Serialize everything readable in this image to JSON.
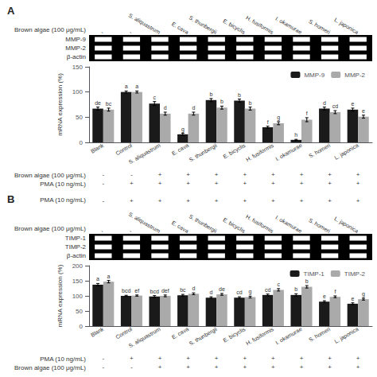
{
  "chart_data": [
    {
      "type": "bar",
      "title": "A",
      "ylabel": "mRNA expression (%)",
      "categories": [
        "Blank",
        "Control",
        "S. aliquastrum",
        "E. cava",
        "S. thunbergii",
        "E. bicyclis",
        "H. fusiformis",
        "I. okamurae",
        "S. homeri",
        "L. japonica"
      ],
      "series": [
        {
          "name": "MMP-9",
          "color": "#1a1a1a",
          "values": [
            67,
            100,
            77,
            16,
            84,
            83,
            30,
            5,
            67,
            65
          ],
          "errors": [
            3,
            2,
            4,
            2,
            3,
            3,
            2,
            1,
            3,
            3
          ],
          "letters": [
            "de",
            "a",
            "c",
            "g",
            "b",
            "b",
            "f",
            "h",
            "d",
            "e"
          ]
        },
        {
          "name": "MMP-2",
          "color": "#aaaaaa",
          "values": [
            65,
            100,
            57,
            57,
            69,
            67,
            38,
            45,
            60,
            51
          ],
          "errors": [
            3,
            2,
            3,
            3,
            3,
            3,
            3,
            4,
            3,
            3
          ],
          "letters": [
            "bc",
            "a",
            "d",
            "d",
            "b",
            "b",
            "g",
            "f",
            "cd",
            "e"
          ]
        }
      ],
      "ylim": [
        0,
        150
      ],
      "yticks": [
        0,
        50,
        100,
        150
      ],
      "grid": false,
      "legend": "upper right",
      "gel_labels": [
        "MMP-9",
        "MMP-2",
        "β-actin"
      ],
      "header_rows": [
        {
          "label": "Brown algae (100 μg/mL)",
          "values": [
            "-",
            "-",
            "S. aliquastrum",
            "E. cava",
            "S. thunbergii",
            "E. bicyclis",
            "H. fusiformis",
            "I. okamurae",
            "S. homeri",
            "L. japonica"
          ]
        }
      ],
      "rows": [
        {
          "label": "Brown algae (100 μg/mL)",
          "values": [
            "-",
            "-",
            "+",
            "+",
            "+",
            "+",
            "+",
            "+",
            "+",
            "+"
          ]
        },
        {
          "label": "PMA (10 ng/mL)",
          "values": [
            "-",
            "+",
            "+",
            "+",
            "+",
            "+",
            "+",
            "+",
            "+",
            "+"
          ]
        }
      ]
    },
    {
      "type": "bar",
      "title": "B",
      "ylabel": "mRNA expression (%)",
      "categories": [
        "Blank",
        "Control",
        "S. aliquastrum",
        "E. cava",
        "S. thunbergii",
        "E. bicyclis",
        "H. fusiformis",
        "I. okamurae",
        "S. homeri",
        "L. japonica"
      ],
      "series": [
        {
          "name": "TIMP-1",
          "color": "#1a1a1a",
          "values": [
            137,
            100,
            98,
            102,
            94,
            94,
            103,
            103,
            81,
            74
          ],
          "errors": [
            4,
            2,
            3,
            3,
            3,
            3,
            3,
            4,
            3,
            3
          ],
          "letters": [
            "a",
            "bcd",
            "bcd",
            "bc",
            "d",
            "cd",
            "cd",
            "b",
            "e",
            "e"
          ]
        },
        {
          "name": "TIMP-2",
          "color": "#aaaaaa",
          "values": [
            147,
            101,
            100,
            107,
            105,
            96,
            120,
            130,
            97,
            89
          ],
          "errors": [
            4,
            2,
            3,
            3,
            3,
            3,
            4,
            4,
            3,
            3
          ],
          "letters": [
            "a",
            "ef",
            "def",
            "d",
            "de",
            "g",
            "c",
            "b",
            "f",
            "g"
          ]
        }
      ],
      "ylim": [
        0,
        200
      ],
      "yticks": [
        0,
        50,
        100,
        150,
        200
      ],
      "grid": false,
      "legend": "upper right",
      "gel_labels": [
        "TIMP-1",
        "TIMP-2",
        "β-actin"
      ],
      "header_rows": [
        {
          "label": "PMA (10 ng/mL)",
          "values": [
            "-",
            "+",
            "+",
            "+",
            "+",
            "+",
            "+",
            "+",
            "+",
            "+"
          ]
        },
        {
          "label": "Brown algae (100 μg/mL)",
          "values": [
            "-",
            "-",
            "S. aliquastrum",
            "E. cava",
            "S. thunbergii",
            "E. bicyclis",
            "H. fusiformis",
            "I. okamurae",
            "S. homeri",
            "L. japonica"
          ]
        }
      ],
      "rows": [
        {
          "label": "PMA (10 ng/mL)",
          "values": [
            "-",
            "+",
            "+",
            "+",
            "+",
            "+",
            "+",
            "+",
            "+",
            "+"
          ]
        },
        {
          "label": "Brown algae (100 μg/mL)",
          "values": [
            "-",
            "-",
            "+",
            "+",
            "+",
            "+",
            "+",
            "+",
            "+",
            "+"
          ]
        }
      ]
    }
  ]
}
